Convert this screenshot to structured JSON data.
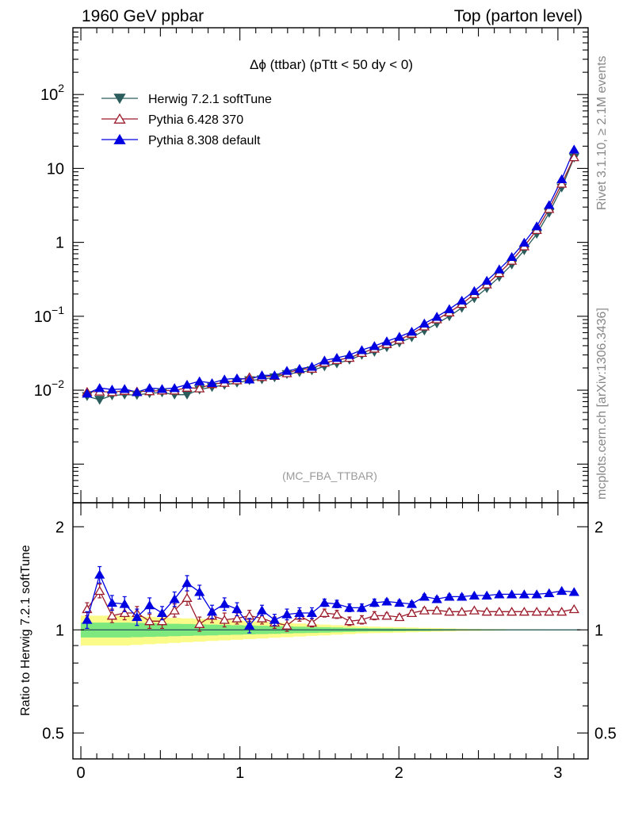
{
  "header": {
    "left_title": "1960 GeV ppbar",
    "right_title": "Top (parton level)"
  },
  "side_labels": {
    "rivet": "Rivet 3.1.10, ≥ 2.1M events",
    "mcplots": "mcplots.cern.ch [arXiv:1306.3436]"
  },
  "plot_title": "Δϕ (ttbar) (pTtt < 50 dy < 0)",
  "analysis_label": "(MC_FBA_TTBAR)",
  "ratio_ylabel": "Ratio to Herwig 7.2.1 softTune",
  "colors": {
    "herwig": "#2b5d5d",
    "pythia6": "#9b1b2b",
    "pythia8": "#0000e0",
    "band_inner": "#7de87d",
    "band_outer": "#fbfb8a"
  },
  "chart_data": [
    {
      "type": "line",
      "panel": "main",
      "scale": "log",
      "ylim": [
        0.0003,
        800
      ],
      "xlim": [
        -0.05,
        3.19
      ],
      "y_ticks": [
        {
          "value": 0.01,
          "base": "10",
          "exp": "−2"
        },
        {
          "value": 0.1,
          "base": "10",
          "exp": "−1"
        },
        {
          "value": 1,
          "base": "1",
          "exp": ""
        },
        {
          "value": 10,
          "base": "10",
          "exp": ""
        },
        {
          "value": 100,
          "base": "10",
          "exp": "2"
        }
      ],
      "x": [
        0.039,
        0.118,
        0.196,
        0.275,
        0.353,
        0.432,
        0.511,
        0.589,
        0.668,
        0.746,
        0.825,
        0.903,
        0.982,
        1.06,
        1.139,
        1.218,
        1.296,
        1.375,
        1.453,
        1.532,
        1.61,
        1.689,
        1.767,
        1.846,
        1.924,
        2.003,
        2.081,
        2.16,
        2.239,
        2.317,
        2.396,
        2.474,
        2.553,
        2.631,
        2.71,
        2.788,
        2.867,
        2.945,
        3.024,
        3.102
      ],
      "series": [
        {
          "name": "Herwig 7.2.1 softTune",
          "marker": "triangle-down-filled",
          "values": [
            0.0083,
            0.0074,
            0.0085,
            0.0087,
            0.0086,
            0.0091,
            0.0093,
            0.0087,
            0.0087,
            0.0102,
            0.011,
            0.0118,
            0.0126,
            0.0136,
            0.014,
            0.0149,
            0.0165,
            0.0175,
            0.0185,
            0.021,
            0.023,
            0.0258,
            0.03,
            0.033,
            0.038,
            0.044,
            0.052,
            0.064,
            0.08,
            0.1,
            0.13,
            0.175,
            0.24,
            0.34,
            0.5,
            0.78,
            1.3,
            2.5,
            5.5,
            14.0
          ]
        },
        {
          "name": "Pythia 6.428 370",
          "marker": "triangle-up-open",
          "values": [
            0.0095,
            0.0096,
            0.0094,
            0.0098,
            0.0096,
            0.0097,
            0.0099,
            0.0099,
            0.0108,
            0.0106,
            0.0121,
            0.0126,
            0.0136,
            0.015,
            0.0151,
            0.0156,
            0.017,
            0.0192,
            0.0195,
            0.0235,
            0.0255,
            0.0274,
            0.032,
            0.0365,
            0.042,
            0.048,
            0.058,
            0.073,
            0.091,
            0.113,
            0.147,
            0.199,
            0.27,
            0.385,
            0.566,
            0.885,
            1.47,
            2.83,
            6.23,
            14.2
          ]
        },
        {
          "name": "Pythia 8.308 default",
          "marker": "triangle-up-filled",
          "values": [
            0.009,
            0.0107,
            0.0102,
            0.0104,
            0.0094,
            0.0107,
            0.0104,
            0.0107,
            0.0119,
            0.0132,
            0.0125,
            0.014,
            0.0145,
            0.014,
            0.0159,
            0.0159,
            0.0183,
            0.0195,
            0.0208,
            0.0252,
            0.0274,
            0.03,
            0.0349,
            0.0396,
            0.0459,
            0.0528,
            0.0619,
            0.08,
            0.0986,
            0.125,
            0.163,
            0.22,
            0.303,
            0.431,
            0.635,
            0.992,
            1.65,
            3.2,
            7.15,
            18.0
          ]
        }
      ]
    },
    {
      "type": "line",
      "panel": "ratio",
      "ylabel": "Ratio to Herwig 7.2.1 softTune",
      "ylim": [
        0.42,
        2.35
      ],
      "xlim": [
        -0.05,
        3.19
      ],
      "x_ticks": [
        0,
        1,
        2,
        3
      ],
      "y_ticks": [
        0.5,
        1,
        2
      ],
      "x": [
        0.039,
        0.118,
        0.196,
        0.275,
        0.353,
        0.432,
        0.511,
        0.589,
        0.668,
        0.746,
        0.825,
        0.903,
        0.982,
        1.06,
        1.139,
        1.218,
        1.296,
        1.375,
        1.453,
        1.532,
        1.61,
        1.689,
        1.767,
        1.846,
        1.924,
        2.003,
        2.081,
        2.16,
        2.239,
        2.317,
        2.396,
        2.474,
        2.553,
        2.631,
        2.71,
        2.788,
        2.867,
        2.945,
        3.024,
        3.102
      ],
      "series": [
        {
          "name": "Pythia 6.428 370",
          "marker": "triangle-up-open",
          "values": [
            1.15,
            1.3,
            1.1,
            1.12,
            1.12,
            1.06,
            1.06,
            1.14,
            1.24,
            1.04,
            1.1,
            1.07,
            1.08,
            1.1,
            1.08,
            1.05,
            1.03,
            1.1,
            1.05,
            1.12,
            1.11,
            1.06,
            1.07,
            1.1,
            1.1,
            1.09,
            1.12,
            1.14,
            1.14,
            1.13,
            1.13,
            1.14,
            1.13,
            1.13,
            1.13,
            1.13,
            1.13,
            1.13,
            1.13,
            1.15
          ],
          "err": [
            0.05,
            0.06,
            0.05,
            0.05,
            0.05,
            0.05,
            0.05,
            0.05,
            0.06,
            0.05,
            0.05,
            0.05,
            0.04,
            0.04,
            0.04,
            0.04,
            0.04,
            0.04,
            0.03,
            0.03,
            0.03,
            0.03,
            0.03,
            0.03,
            0.02,
            0.02,
            0.02,
            0.02,
            0.02,
            0.02,
            0.01,
            0.01,
            0.01,
            0.01,
            0.01,
            0.01,
            0.01,
            0.01,
            0.01,
            0.01
          ]
        },
        {
          "name": "Pythia 8.308 default",
          "marker": "triangle-up-filled",
          "values": [
            1.07,
            1.45,
            1.2,
            1.19,
            1.09,
            1.18,
            1.12,
            1.23,
            1.37,
            1.29,
            1.13,
            1.19,
            1.15,
            1.03,
            1.14,
            1.07,
            1.11,
            1.12,
            1.12,
            1.2,
            1.19,
            1.16,
            1.16,
            1.2,
            1.21,
            1.2,
            1.19,
            1.25,
            1.23,
            1.25,
            1.25,
            1.26,
            1.26,
            1.27,
            1.27,
            1.27,
            1.27,
            1.28,
            1.3,
            1.29
          ],
          "err": [
            0.06,
            0.08,
            0.06,
            0.06,
            0.06,
            0.06,
            0.05,
            0.06,
            0.07,
            0.06,
            0.05,
            0.05,
            0.05,
            0.05,
            0.04,
            0.04,
            0.04,
            0.04,
            0.04,
            0.03,
            0.03,
            0.03,
            0.03,
            0.03,
            0.02,
            0.02,
            0.02,
            0.02,
            0.02,
            0.02,
            0.02,
            0.01,
            0.01,
            0.01,
            0.01,
            0.01,
            0.01,
            0.01,
            0.01,
            0.01
          ]
        }
      ],
      "band_inner": [
        0.05,
        0.05,
        0.05,
        0.05,
        0.048,
        0.046,
        0.044,
        0.042,
        0.04,
        0.038,
        0.036,
        0.034,
        0.032,
        0.03,
        0.028,
        0.026,
        0.024,
        0.022,
        0.02,
        0.018,
        0.016,
        0.014,
        0.012,
        0.011,
        0.01,
        0.009,
        0.008,
        0.007,
        0.006,
        0.005,
        0.004,
        0.004,
        0.003,
        0.003,
        0.002,
        0.002,
        0.002,
        0.001,
        0.001,
        0.001
      ],
      "band_outer": [
        0.1,
        0.1,
        0.1,
        0.1,
        0.096,
        0.092,
        0.088,
        0.084,
        0.08,
        0.076,
        0.072,
        0.068,
        0.064,
        0.06,
        0.056,
        0.052,
        0.048,
        0.044,
        0.04,
        0.036,
        0.032,
        0.028,
        0.024,
        0.022,
        0.02,
        0.018,
        0.016,
        0.014,
        0.012,
        0.01,
        0.008,
        0.007,
        0.006,
        0.005,
        0.004,
        0.004,
        0.003,
        0.002,
        0.002,
        0.002
      ]
    }
  ]
}
